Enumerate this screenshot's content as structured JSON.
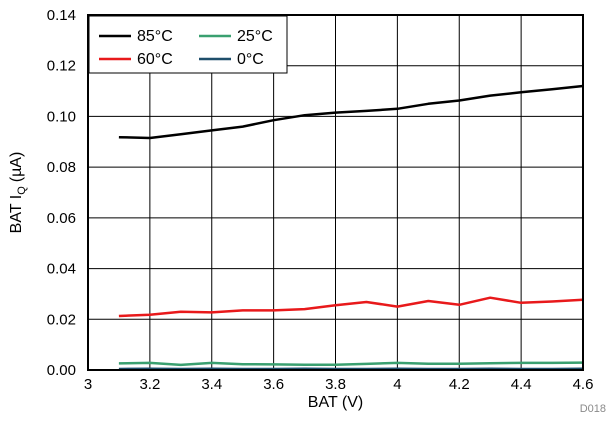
{
  "chart_data": {
    "type": "line",
    "xlabel": "BAT (V)",
    "ylabel_main": "BAT I",
    "ylabel_sub": "Q",
    "ylabel_unit": "(µA)",
    "xlim": [
      3,
      4.6
    ],
    "ylim": [
      0,
      0.14
    ],
    "x_ticks": [
      3,
      3.2,
      3.4,
      3.6,
      3.8,
      4,
      4.2,
      4.4,
      4.6
    ],
    "x_tick_labels": [
      "3",
      "3.2",
      "3.4",
      "3.6",
      "3.8",
      "4",
      "4.2",
      "4.4",
      "4.6"
    ],
    "y_ticks": [
      0,
      0.02,
      0.04,
      0.06,
      0.08,
      0.1,
      0.12,
      0.14
    ],
    "y_tick_labels": [
      "0.00",
      "0.02",
      "0.04",
      "0.06",
      "0.08",
      "0.10",
      "0.12",
      "0.14"
    ],
    "grid": true,
    "legend_position": "top-left",
    "x": [
      3.1,
      3.2,
      3.3,
      3.4,
      3.5,
      3.6,
      3.7,
      3.8,
      3.9,
      4.0,
      4.1,
      4.2,
      4.3,
      4.4,
      4.5,
      4.6
    ],
    "series": [
      {
        "name": "85°C",
        "color": "#000000",
        "values": [
          0.0918,
          0.0915,
          0.093,
          0.0945,
          0.096,
          0.0985,
          0.1005,
          0.1015,
          0.1022,
          0.103,
          0.105,
          0.1063,
          0.1082,
          0.1095,
          0.1107,
          0.112
        ]
      },
      {
        "name": "60°C",
        "color": "#e8191b",
        "values": [
          0.0213,
          0.0218,
          0.023,
          0.0227,
          0.0235,
          0.0235,
          0.024,
          0.0255,
          0.0268,
          0.025,
          0.0272,
          0.0257,
          0.0285,
          0.0265,
          0.027,
          0.0277
        ]
      },
      {
        "name": "25°C",
        "color": "#3aa070",
        "values": [
          0.0026,
          0.0028,
          0.002,
          0.0028,
          0.0023,
          0.0022,
          0.0021,
          0.0021,
          0.0024,
          0.0028,
          0.0025,
          0.0025,
          0.0027,
          0.0028,
          0.0028,
          0.0029
        ]
      },
      {
        "name": "0°C",
        "color": "#1f4e6b",
        "values": [
          0.0004,
          0.0005,
          0.0004,
          0.0005,
          0.0004,
          0.0004,
          0.0005,
          0.0004,
          0.0004,
          0.0005,
          0.0004,
          0.0004,
          0.0005,
          0.0004,
          0.0004,
          0.0005
        ]
      }
    ],
    "footnote": "D018"
  }
}
